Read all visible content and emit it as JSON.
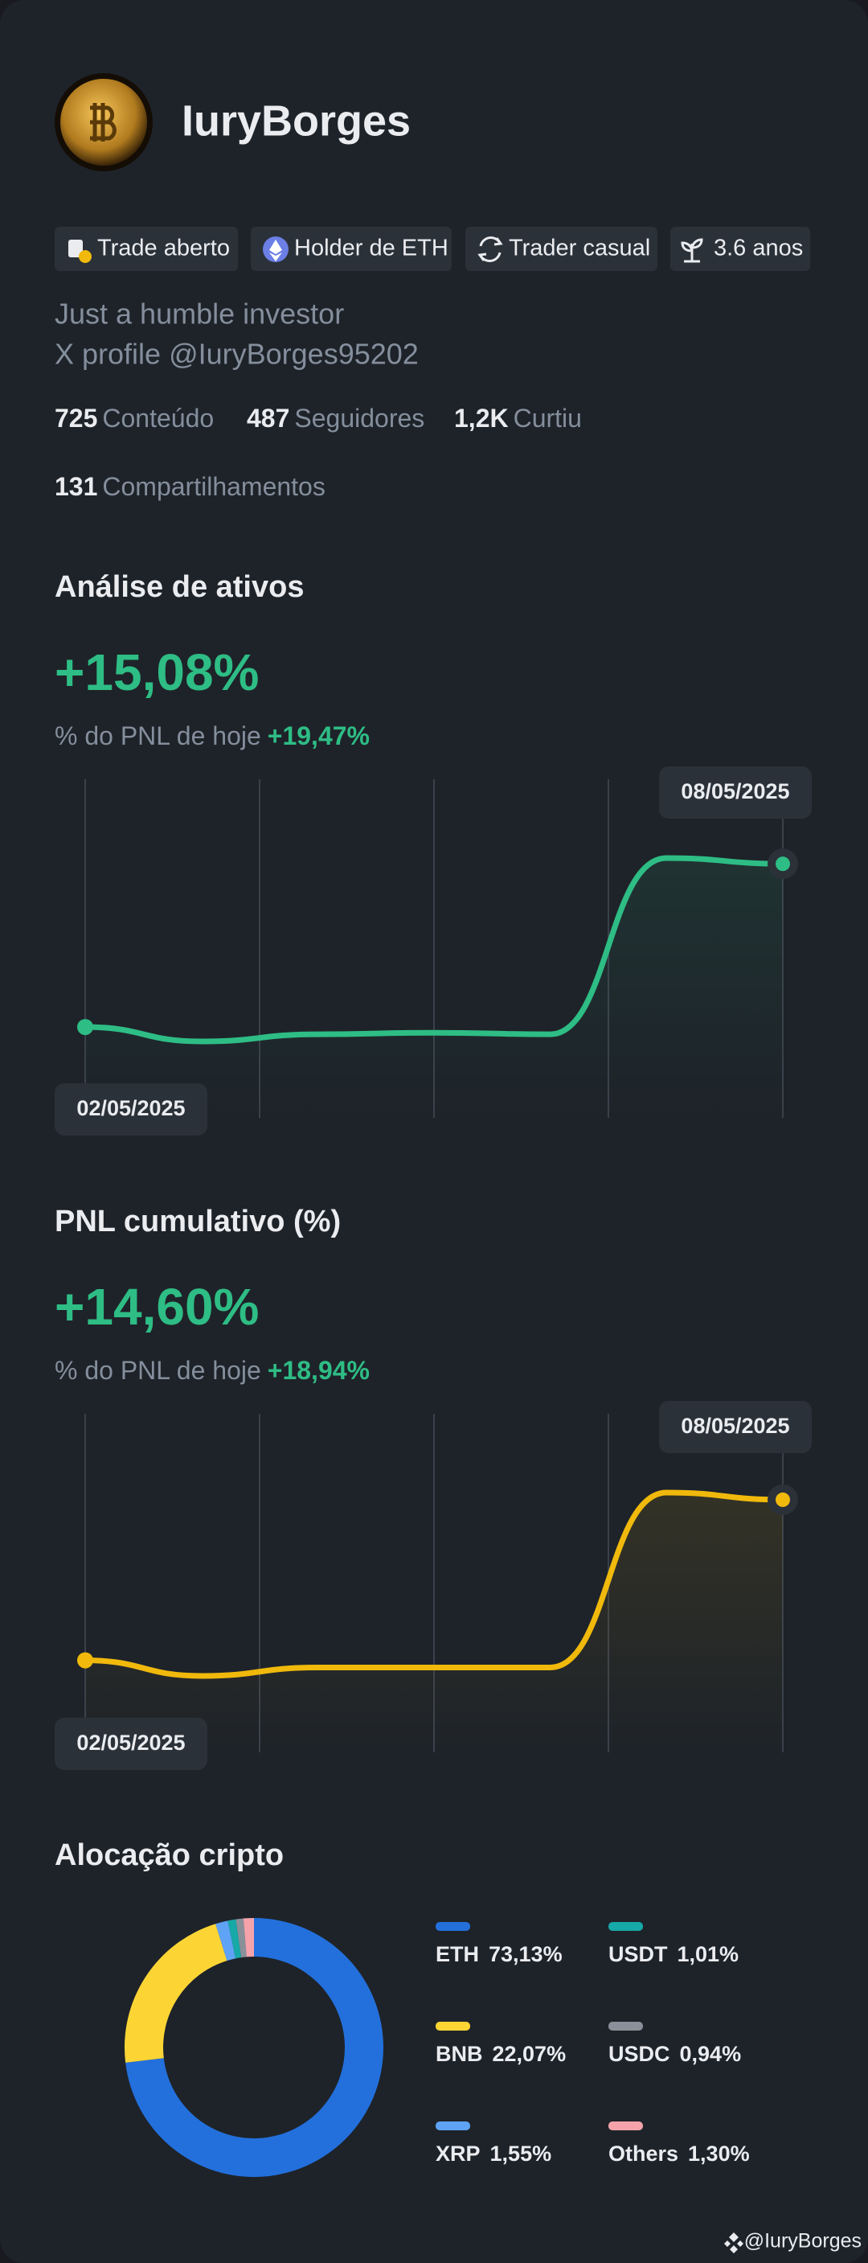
{
  "profile": {
    "name": "IuryBorges",
    "tags": [
      "Trade aberto",
      "Holder de ETH",
      "Trader casual",
      "3.6 anos"
    ],
    "bio": [
      "Just a humble investor",
      "X profile @IuryBorges95202"
    ],
    "stats": [
      {
        "value": "725",
        "label": "Conteúdo"
      },
      {
        "value": "487",
        "label": "Seguidores"
      },
      {
        "value": "1,2K",
        "label": "Curtiu"
      },
      {
        "value": "131",
        "label": "Compartilhamentos"
      }
    ]
  },
  "chart_data": [
    {
      "type": "line",
      "title": "Análise de ativos",
      "headline": "+15,08%",
      "subtitle_label": "% do PNL de hoje",
      "subtitle_value": "+19,47%",
      "x": [
        "02/05/2025",
        null,
        null,
        null,
        null,
        null,
        "08/05/2025"
      ],
      "values": [
        0,
        -1.33,
        -0.67,
        -0.53,
        -0.67,
        15.61,
        15.08
      ],
      "color": "#2ebd85"
    },
    {
      "type": "line",
      "title": "PNL cumulativo (%)",
      "headline": "+14,60%",
      "subtitle_label": "% do PNL de hoje",
      "subtitle_value": "+18,94%",
      "x": [
        "02/05/2025",
        null,
        null,
        null,
        null,
        null,
        "08/05/2025"
      ],
      "values": [
        0,
        -1.42,
        -0.65,
        -0.65,
        -0.65,
        15.25,
        14.6
      ],
      "color": "#f0b90b"
    },
    {
      "type": "pie",
      "title": "Alocação cripto",
      "categories": [
        "ETH",
        "BNB",
        "XRP",
        "USDT",
        "USDC",
        "Others"
      ],
      "values": [
        73.13,
        22.07,
        1.55,
        1.01,
        0.94,
        1.3
      ],
      "value_labels": [
        "73,13%",
        "22,07%",
        "1,55%",
        "1,01%",
        "0,94%",
        "1,30%"
      ],
      "colors": [
        "#2370dc",
        "#fcd535",
        "#5fa3f6",
        "#17a8a8",
        "#8a9099",
        "#f5a3ab"
      ]
    }
  ],
  "footer": {
    "handle": "@IuryBorges"
  }
}
